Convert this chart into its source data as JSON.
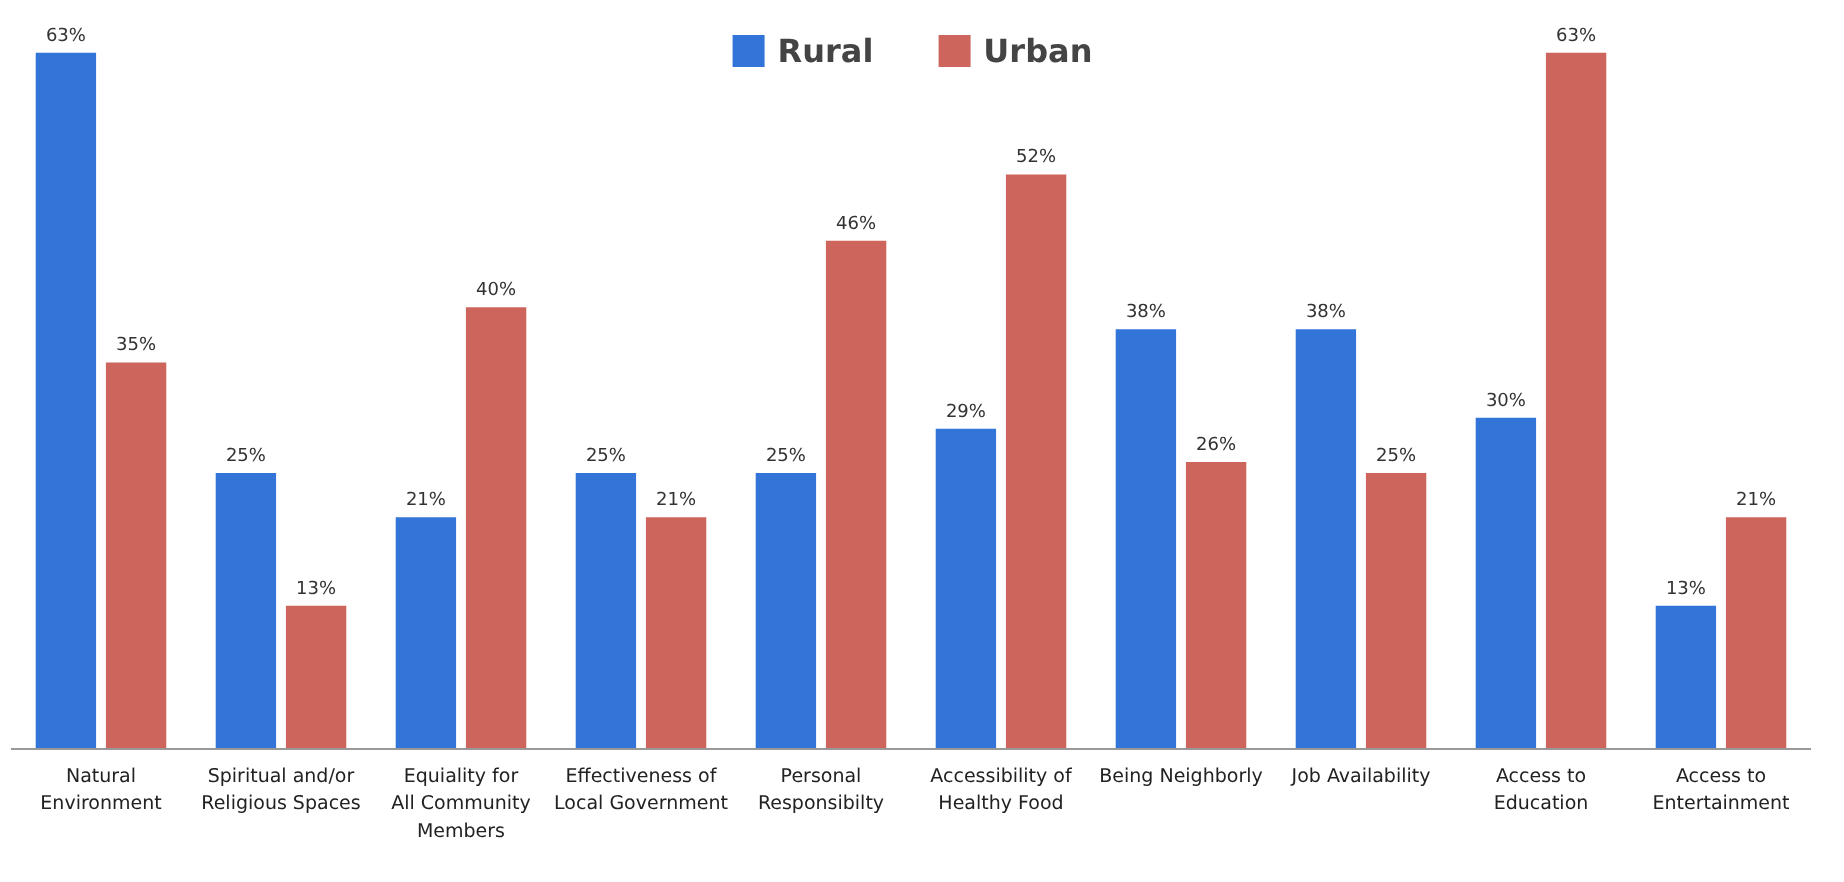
{
  "chart_data": {
    "type": "bar",
    "categories": [
      "Natural Environment",
      "Spiritual and/or Religious Spaces",
      "Equiality for All Community Members",
      "Effectiveness of Local Government",
      "Personal Responsibilty",
      "Accessibility of Healthy Food",
      "Being Neighborly",
      "Job Availability",
      "Access to Education",
      "Access to Entertainment"
    ],
    "series": [
      {
        "name": "Rural",
        "color": "#3374d9",
        "values": [
          63,
          25,
          21,
          25,
          25,
          29,
          38,
          38,
          30,
          13
        ],
        "value_labels": [
          "63%",
          "25%",
          "21%",
          "25%",
          "25%",
          "29%",
          "38%",
          "38%",
          "30%",
          "13%"
        ]
      },
      {
        "name": "Urban",
        "color": "#cd655c",
        "values": [
          35,
          13,
          40,
          21,
          46,
          52,
          26,
          25,
          63,
          21
        ],
        "value_labels": [
          "35%",
          "13%",
          "40%",
          "21%",
          "46%",
          "52%",
          "26%",
          "25%",
          "63%",
          "21%"
        ]
      }
    ],
    "legend": "top"
  }
}
